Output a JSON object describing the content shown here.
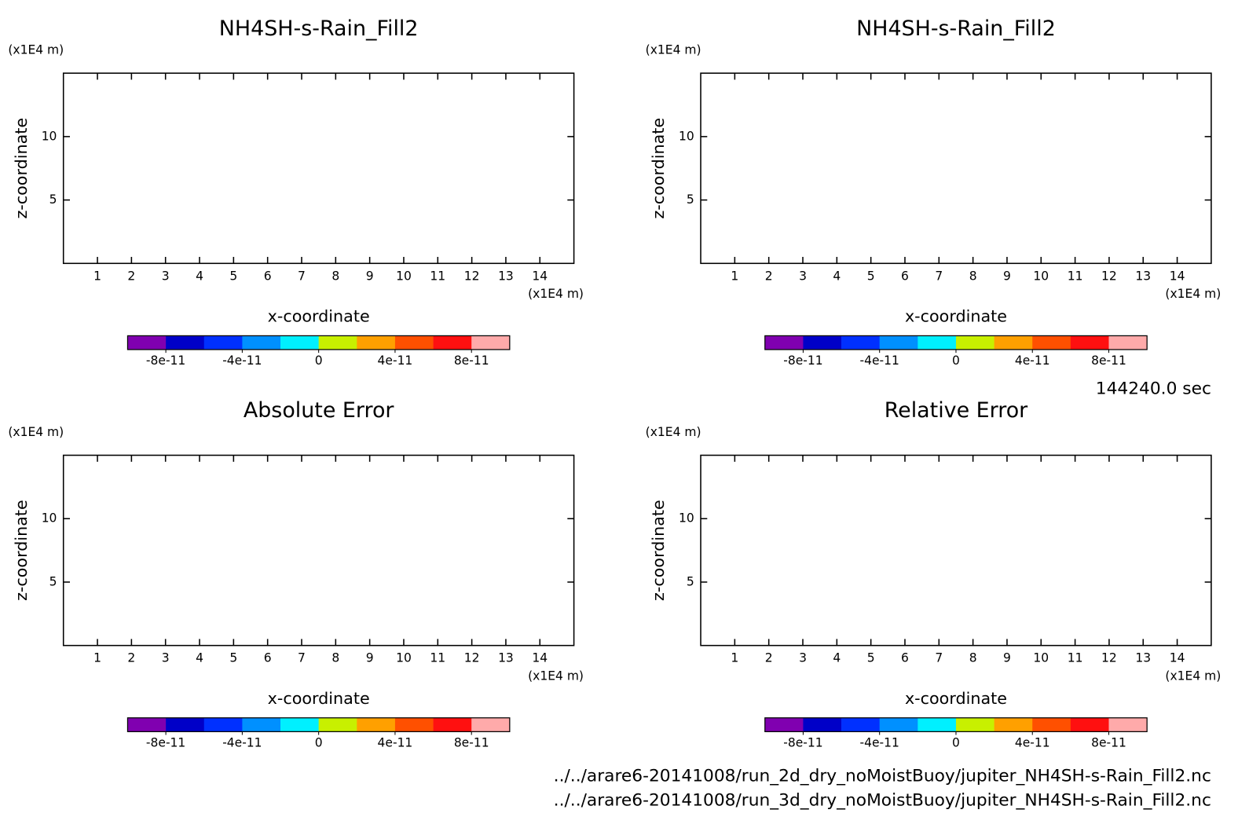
{
  "chart_data": [
    {
      "type": "contour",
      "title": "NH4SH-s-Rain_Fill2",
      "xlabel": "x-coordinate",
      "ylabel": "z-coordinate",
      "xunit": "(x1E4 m)",
      "yunit": "(x1E4 m)",
      "xlim": [
        0,
        15
      ],
      "ylim": [
        0,
        15
      ],
      "xticks": [
        1,
        2,
        3,
        4,
        5,
        6,
        7,
        8,
        9,
        10,
        11,
        12,
        13,
        14
      ],
      "yticks": [
        5,
        10
      ],
      "colorbar": {
        "lim": [
          -1e-10,
          1e-10
        ],
        "ticks": [
          -8e-11,
          -4e-11,
          0,
          4e-11,
          8e-11
        ],
        "colors": [
          "#8000b0",
          "#0000c8",
          "#0030ff",
          "#0090ff",
          "#00f0ff",
          "#c8f000",
          "#ffa000",
          "#ff5000",
          "#ff1010",
          "#ffaaaa"
        ]
      }
    },
    {
      "type": "contour",
      "title": "NH4SH-s-Rain_Fill2",
      "xlabel": "x-coordinate",
      "ylabel": "z-coordinate",
      "xunit": "(x1E4 m)",
      "yunit": "(x1E4 m)",
      "xlim": [
        0,
        15
      ],
      "ylim": [
        0,
        15
      ],
      "xticks": [
        1,
        2,
        3,
        4,
        5,
        6,
        7,
        8,
        9,
        10,
        11,
        12,
        13,
        14
      ],
      "yticks": [
        5,
        10
      ],
      "colorbar": {
        "lim": [
          -1e-10,
          1e-10
        ],
        "ticks": [
          -8e-11,
          -4e-11,
          0,
          4e-11,
          8e-11
        ],
        "colors": [
          "#8000b0",
          "#0000c8",
          "#0030ff",
          "#0090ff",
          "#00f0ff",
          "#c8f000",
          "#ffa000",
          "#ff5000",
          "#ff1010",
          "#ffaaaa"
        ]
      }
    },
    {
      "type": "contour",
      "title": "Absolute Error",
      "xlabel": "x-coordinate",
      "ylabel": "z-coordinate",
      "xunit": "(x1E4 m)",
      "yunit": "(x1E4 m)",
      "xlim": [
        0,
        15
      ],
      "ylim": [
        0,
        15
      ],
      "xticks": [
        1,
        2,
        3,
        4,
        5,
        6,
        7,
        8,
        9,
        10,
        11,
        12,
        13,
        14
      ],
      "yticks": [
        5,
        10
      ],
      "colorbar": {
        "lim": [
          -1e-10,
          1e-10
        ],
        "ticks": [
          -8e-11,
          -4e-11,
          0,
          4e-11,
          8e-11
        ],
        "colors": [
          "#8000b0",
          "#0000c8",
          "#0030ff",
          "#0090ff",
          "#00f0ff",
          "#c8f000",
          "#ffa000",
          "#ff5000",
          "#ff1010",
          "#ffaaaa"
        ]
      }
    },
    {
      "type": "contour",
      "title": "Relative Error",
      "xlabel": "x-coordinate",
      "ylabel": "z-coordinate",
      "xunit": "(x1E4 m)",
      "yunit": "(x1E4 m)",
      "xlim": [
        0,
        15
      ],
      "ylim": [
        0,
        15
      ],
      "xticks": [
        1,
        2,
        3,
        4,
        5,
        6,
        7,
        8,
        9,
        10,
        11,
        12,
        13,
        14
      ],
      "yticks": [
        5,
        10
      ],
      "colorbar": {
        "lim": [
          -1e-10,
          1e-10
        ],
        "ticks": [
          -8e-11,
          -4e-11,
          0,
          4e-11,
          8e-11
        ],
        "colors": [
          "#8000b0",
          "#0000c8",
          "#0030ff",
          "#0090ff",
          "#00f0ff",
          "#c8f000",
          "#ffa000",
          "#ff5000",
          "#ff1010",
          "#ffaaaa"
        ]
      }
    }
  ],
  "time": "144240.0 sec",
  "files": [
    "../../arare6-20141008/run_2d_dry_noMoistBuoy/jupiter_NH4SH-s-Rain_Fill2.nc",
    "../../arare6-20141008/run_3d_dry_noMoistBuoy/jupiter_NH4SH-s-Rain_Fill2.nc"
  ]
}
